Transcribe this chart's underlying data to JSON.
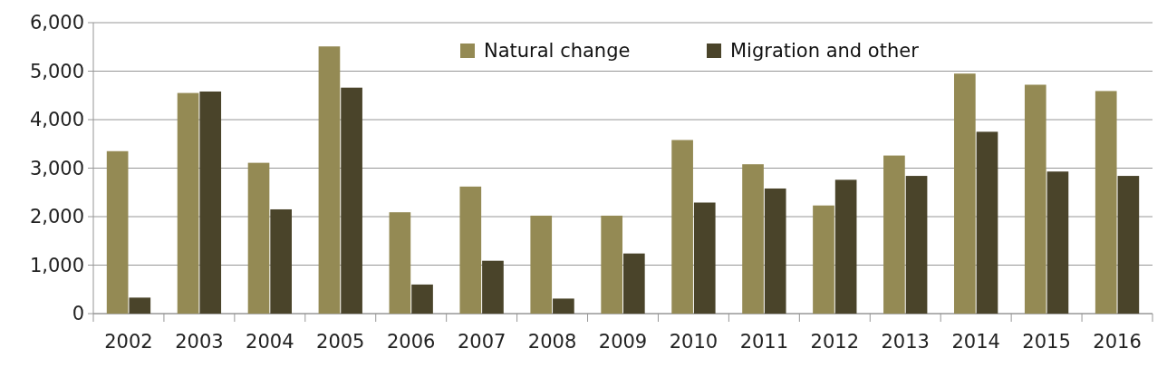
{
  "chart_data": {
    "type": "bar",
    "categories": [
      "2002",
      "2003",
      "2004",
      "2005",
      "2006",
      "2007",
      "2008",
      "2009",
      "2010",
      "2011",
      "2012",
      "2013",
      "2014",
      "2015",
      "2016"
    ],
    "series": [
      {
        "name": "Natural change",
        "color": "#948a54",
        "values": [
          3350,
          4550,
          3110,
          5510,
          2090,
          2620,
          2020,
          2020,
          3580,
          3080,
          2230,
          3260,
          4950,
          4720,
          4590
        ]
      },
      {
        "name": "Migration and other",
        "color": "#4a442a",
        "values": [
          330,
          4580,
          2150,
          4660,
          600,
          1090,
          310,
          1240,
          2290,
          2580,
          2760,
          2840,
          3750,
          2930,
          2840
        ]
      }
    ],
    "ylim": [
      0,
      6000
    ],
    "yticks": [
      {
        "value": 0,
        "label": "0"
      },
      {
        "value": 1000,
        "label": "1,000"
      },
      {
        "value": 2000,
        "label": "2,000"
      },
      {
        "value": 3000,
        "label": "3,000"
      },
      {
        "value": 4000,
        "label": "4,000"
      },
      {
        "value": 5000,
        "label": "5,000"
      },
      {
        "value": 6000,
        "label": "6,000"
      }
    ],
    "grid": "y",
    "legend": "top"
  }
}
